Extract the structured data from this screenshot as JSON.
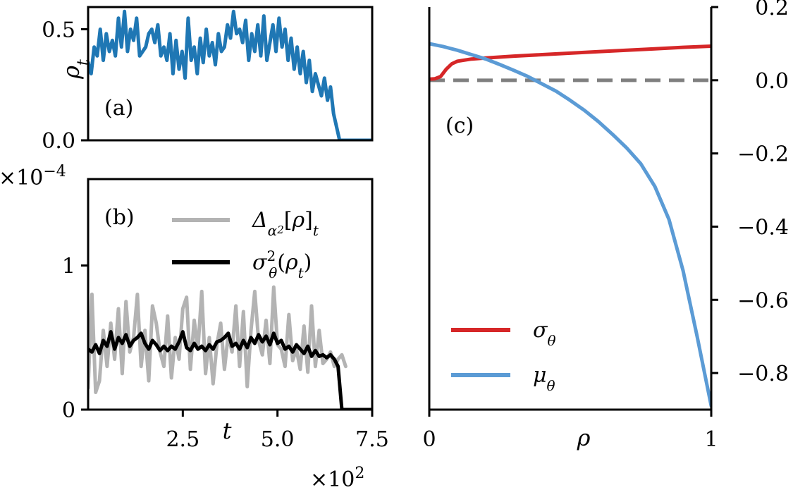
{
  "chart_data": [
    {
      "panel": "(a)",
      "type": "line",
      "ylabel": "ρ_t",
      "ylim": [
        0.0,
        0.6
      ],
      "xlim": [
        0,
        750
      ],
      "yticks": [
        0.0,
        0.5
      ],
      "ytick_labels": [
        "0.0",
        "0.5"
      ],
      "series": [
        {
          "color": "#1f77b4",
          "x": [
            0,
            8,
            16,
            24,
            32,
            40,
            48,
            56,
            64,
            72,
            80,
            88,
            96,
            104,
            112,
            120,
            128,
            136,
            144,
            152,
            160,
            168,
            176,
            184,
            192,
            200,
            208,
            216,
            224,
            232,
            240,
            248,
            256,
            264,
            272,
            280,
            288,
            296,
            304,
            312,
            320,
            328,
            336,
            344,
            352,
            360,
            368,
            376,
            384,
            392,
            400,
            408,
            416,
            424,
            432,
            440,
            448,
            456,
            464,
            472,
            480,
            488,
            496,
            504,
            512,
            520,
            528,
            536,
            544,
            552,
            560,
            568,
            576,
            584,
            592,
            600,
            608,
            616,
            624,
            632,
            640,
            648,
            656,
            664,
            672,
            680,
            688,
            696,
            704,
            712,
            720,
            728,
            736,
            744,
            750
          ],
          "values": [
            0.35,
            0.3,
            0.42,
            0.38,
            0.5,
            0.36,
            0.48,
            0.4,
            0.45,
            0.38,
            0.55,
            0.42,
            0.58,
            0.4,
            0.5,
            0.45,
            0.55,
            0.38,
            0.4,
            0.42,
            0.48,
            0.5,
            0.44,
            0.52,
            0.38,
            0.42,
            0.36,
            0.48,
            0.3,
            0.45,
            0.32,
            0.4,
            0.28,
            0.55,
            0.36,
            0.42,
            0.3,
            0.46,
            0.35,
            0.5,
            0.38,
            0.44,
            0.34,
            0.48,
            0.4,
            0.42,
            0.52,
            0.46,
            0.58,
            0.48,
            0.5,
            0.44,
            0.54,
            0.36,
            0.48,
            0.4,
            0.52,
            0.38,
            0.56,
            0.36,
            0.44,
            0.52,
            0.4,
            0.55,
            0.42,
            0.5,
            0.36,
            0.46,
            0.32,
            0.42,
            0.3,
            0.4,
            0.26,
            0.36,
            0.22,
            0.3,
            0.25,
            0.2,
            0.28,
            0.18,
            0.24,
            0.12,
            0.06,
            0.0,
            0.0,
            0.0,
            0.0,
            0.0,
            0.0,
            0.0,
            0.0,
            0.0,
            0.0,
            0.0,
            0.0
          ]
        }
      ]
    },
    {
      "panel": "(b)",
      "type": "line",
      "xlabel": "t",
      "xlim": [
        0,
        750
      ],
      "ylim": [
        0,
        1.6
      ],
      "xticks": [
        250,
        500,
        750
      ],
      "xtick_labels": [
        "2.5",
        "5.0",
        "7.5"
      ],
      "yticks": [
        0,
        1
      ],
      "ytick_labels": [
        "0",
        "1"
      ],
      "y_multiplier": "×10⁻⁴",
      "x_multiplier": "×10²",
      "legend_position": "top-right",
      "series": [
        {
          "name": "Δ_{α₂}[ρ]_t",
          "color": "#b3b3b3",
          "x": [
            0,
            10,
            20,
            30,
            40,
            50,
            60,
            70,
            80,
            90,
            100,
            110,
            120,
            130,
            140,
            150,
            160,
            170,
            180,
            190,
            200,
            210,
            220,
            230,
            240,
            250,
            260,
            270,
            280,
            290,
            300,
            310,
            320,
            330,
            340,
            350,
            360,
            370,
            380,
            390,
            400,
            410,
            420,
            430,
            440,
            450,
            460,
            470,
            480,
            490,
            500,
            510,
            520,
            530,
            540,
            550,
            560,
            570,
            580,
            590,
            600,
            610,
            620,
            630,
            640,
            650,
            660,
            670,
            680
          ],
          "values": [
            0.15,
            0.8,
            0.12,
            0.2,
            0.55,
            0.3,
            0.6,
            0.35,
            0.7,
            0.25,
            0.75,
            0.4,
            0.5,
            0.8,
            0.3,
            0.55,
            0.2,
            0.72,
            0.6,
            0.4,
            0.3,
            0.65,
            0.22,
            0.5,
            0.35,
            0.7,
            0.78,
            0.28,
            0.62,
            0.42,
            0.82,
            0.25,
            0.5,
            0.18,
            0.45,
            0.6,
            0.28,
            0.52,
            0.4,
            0.72,
            0.3,
            0.68,
            0.16,
            0.55,
            0.82,
            0.48,
            0.38,
            0.62,
            0.32,
            0.85,
            0.45,
            0.42,
            0.3,
            0.66,
            0.34,
            0.42,
            0.28,
            0.58,
            0.26,
            0.72,
            0.3,
            0.55,
            0.32,
            0.35,
            0.4,
            0.3,
            0.35,
            0.38,
            0.3
          ]
        },
        {
          "name": "σ²_θ(ρ_t)",
          "color": "#000000",
          "x": [
            0,
            10,
            20,
            30,
            40,
            50,
            60,
            70,
            80,
            90,
            100,
            110,
            120,
            130,
            140,
            150,
            160,
            170,
            180,
            190,
            200,
            210,
            220,
            230,
            240,
            250,
            260,
            270,
            280,
            290,
            300,
            310,
            320,
            330,
            340,
            350,
            360,
            370,
            380,
            390,
            400,
            410,
            420,
            430,
            440,
            450,
            460,
            470,
            480,
            490,
            500,
            510,
            520,
            530,
            540,
            550,
            560,
            570,
            580,
            590,
            600,
            610,
            620,
            630,
            640,
            650,
            660,
            670,
            680,
            690,
            700,
            710,
            720,
            730,
            740,
            750
          ],
          "values": [
            0.42,
            0.4,
            0.45,
            0.39,
            0.48,
            0.44,
            0.54,
            0.42,
            0.5,
            0.46,
            0.52,
            0.44,
            0.48,
            0.5,
            0.53,
            0.46,
            0.42,
            0.48,
            0.45,
            0.41,
            0.44,
            0.41,
            0.44,
            0.42,
            0.47,
            0.54,
            0.43,
            0.41,
            0.46,
            0.42,
            0.44,
            0.41,
            0.45,
            0.42,
            0.47,
            0.48,
            0.5,
            0.53,
            0.44,
            0.46,
            0.42,
            0.48,
            0.43,
            0.5,
            0.46,
            0.52,
            0.47,
            0.51,
            0.45,
            0.53,
            0.46,
            0.48,
            0.42,
            0.44,
            0.4,
            0.45,
            0.42,
            0.39,
            0.44,
            0.37,
            0.41,
            0.37,
            0.38,
            0.36,
            0.38,
            0.35,
            0.3,
            0.0,
            0.0,
            0.0,
            0.0,
            0.0,
            0.0,
            0.0,
            0.0,
            0.0
          ]
        }
      ]
    },
    {
      "panel": "(c)",
      "type": "line",
      "xlabel": "ρ",
      "xlim": [
        0,
        1
      ],
      "ylim": [
        -0.9,
        0.2
      ],
      "xticks": [
        0,
        1
      ],
      "xtick_labels": [
        "0",
        "1"
      ],
      "yticks": [
        0.2,
        0.0,
        -0.2,
        -0.4,
        -0.6,
        -0.8
      ],
      "ytick_labels": [
        "0.2",
        "0.0",
        "−0.2",
        "−0.4",
        "−0.6",
        "−0.8"
      ],
      "y_axis_side": "right",
      "legend_position": "bottom-left",
      "hline": {
        "y": 0.0,
        "style": "dashed",
        "color": "#7f7f7f"
      },
      "series": [
        {
          "name": "σ_θ",
          "color": "#d62728",
          "x": [
            0,
            0.02,
            0.04,
            0.06,
            0.08,
            0.1,
            0.15,
            0.2,
            0.3,
            0.4,
            0.5,
            0.6,
            0.7,
            0.8,
            0.9,
            1.0
          ],
          "values": [
            0.003,
            0.004,
            0.01,
            0.03,
            0.045,
            0.052,
            0.058,
            0.061,
            0.066,
            0.07,
            0.074,
            0.078,
            0.082,
            0.086,
            0.09,
            0.093
          ]
        },
        {
          "name": "μ_θ",
          "color": "#5b9bd5",
          "x": [
            0,
            0.05,
            0.1,
            0.15,
            0.2,
            0.25,
            0.3,
            0.35,
            0.4,
            0.45,
            0.5,
            0.55,
            0.6,
            0.65,
            0.7,
            0.75,
            0.8,
            0.85,
            0.9,
            0.95,
            1.0
          ],
          "values": [
            0.1,
            0.092,
            0.082,
            0.07,
            0.058,
            0.043,
            0.027,
            0.01,
            -0.01,
            -0.03,
            -0.055,
            -0.082,
            -0.113,
            -0.148,
            -0.185,
            -0.228,
            -0.29,
            -0.38,
            -0.52,
            -0.7,
            -0.89
          ]
        }
      ]
    }
  ]
}
